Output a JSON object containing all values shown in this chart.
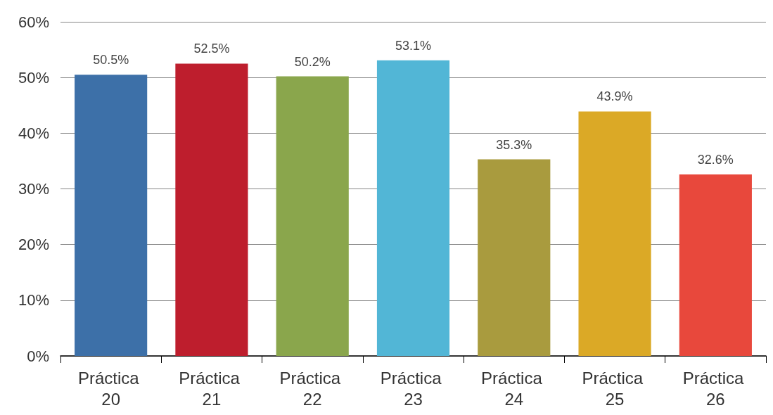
{
  "chart_data": {
    "type": "bar",
    "categories": [
      "Práctica 20",
      "Práctica 21",
      "Práctica 22",
      "Práctica 23",
      "Práctica 24",
      "Práctica 25",
      "Práctica 26"
    ],
    "values": [
      50.5,
      52.5,
      50.2,
      53.1,
      35.3,
      43.9,
      32.6
    ],
    "colors": [
      "#3d70a8",
      "#be1e2d",
      "#8aa64c",
      "#52b6d6",
      "#a99b3e",
      "#dba926",
      "#e8483c"
    ],
    "value_labels": [
      "50.5%",
      "52.5%",
      "50.2%",
      "53.1%",
      "35.3%",
      "43.9%",
      "32.6%"
    ],
    "ylim": [
      0,
      60
    ],
    "yticks": [
      {
        "value": 0,
        "label": "0%"
      },
      {
        "value": 10,
        "label": "10%"
      },
      {
        "value": 20,
        "label": "20%"
      },
      {
        "value": 30,
        "label": "30%"
      },
      {
        "value": 40,
        "label": "40%"
      },
      {
        "value": 50,
        "label": "50%"
      },
      {
        "value": 60,
        "label": "60%"
      }
    ],
    "grid": "y"
  }
}
